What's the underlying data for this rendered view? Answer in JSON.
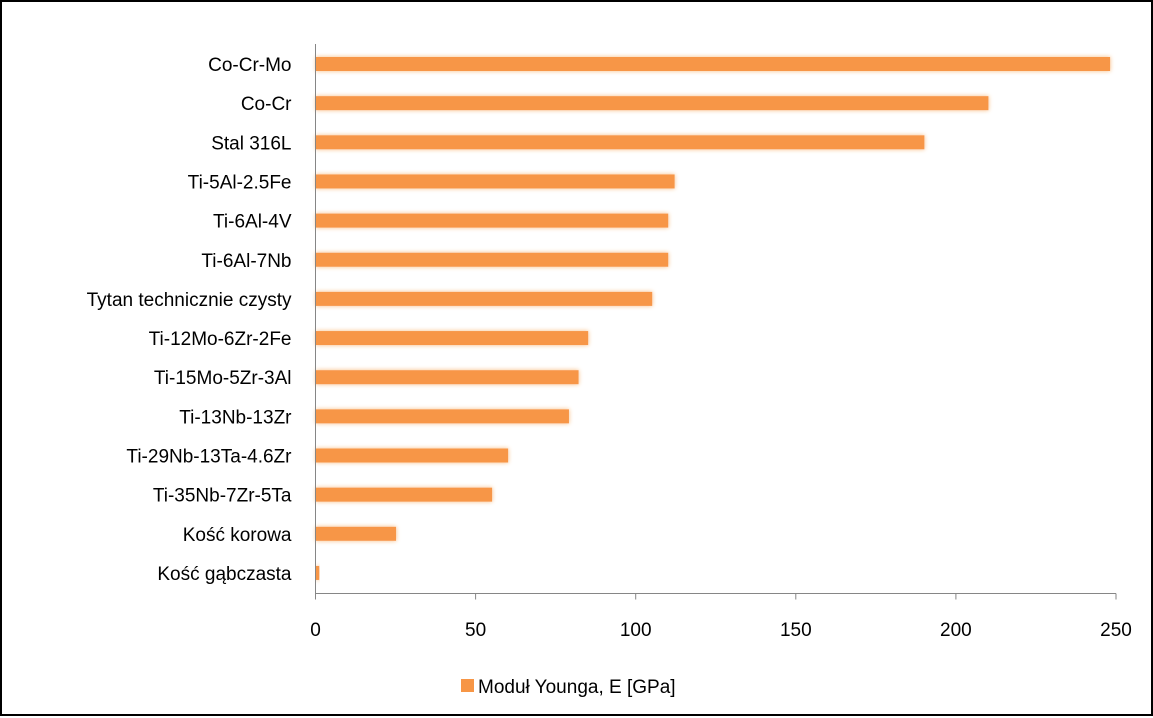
{
  "chart_data": {
    "type": "bar",
    "orientation": "horizontal",
    "title": "",
    "xlabel": "",
    "ylabel": "",
    "categories": [
      "Co-Cr-Mo",
      "Co-Cr",
      "Stal 316L",
      "Ti-5Al-2.5Fe",
      "Ti-6Al-4V",
      "Ti-6Al-7Nb",
      "Tytan technicznie czysty",
      "Ti-12Mo-6Zr-2Fe",
      "Ti-15Mo-5Zr-3Al",
      "Ti-13Nb-13Zr",
      "Ti-29Nb-13Ta-4.6Zr",
      "Ti-35Nb-7Zr-5Ta",
      "Kość korowa",
      "Kość gąbczasta"
    ],
    "series": [
      {
        "name": "Moduł Younga, E [GPa]",
        "color": "#f79646",
        "values": [
          248,
          210,
          190,
          112,
          110,
          110,
          105,
          85,
          82,
          79,
          60,
          55,
          25,
          1
        ]
      }
    ],
    "xlim": [
      0,
      250
    ],
    "xticks": [
      0,
      50,
      100,
      150,
      200,
      250
    ],
    "xtick_labels": [
      "0",
      "50",
      "100",
      "150",
      "200",
      "250"
    ],
    "grid": false,
    "legend_position": "bottom"
  }
}
